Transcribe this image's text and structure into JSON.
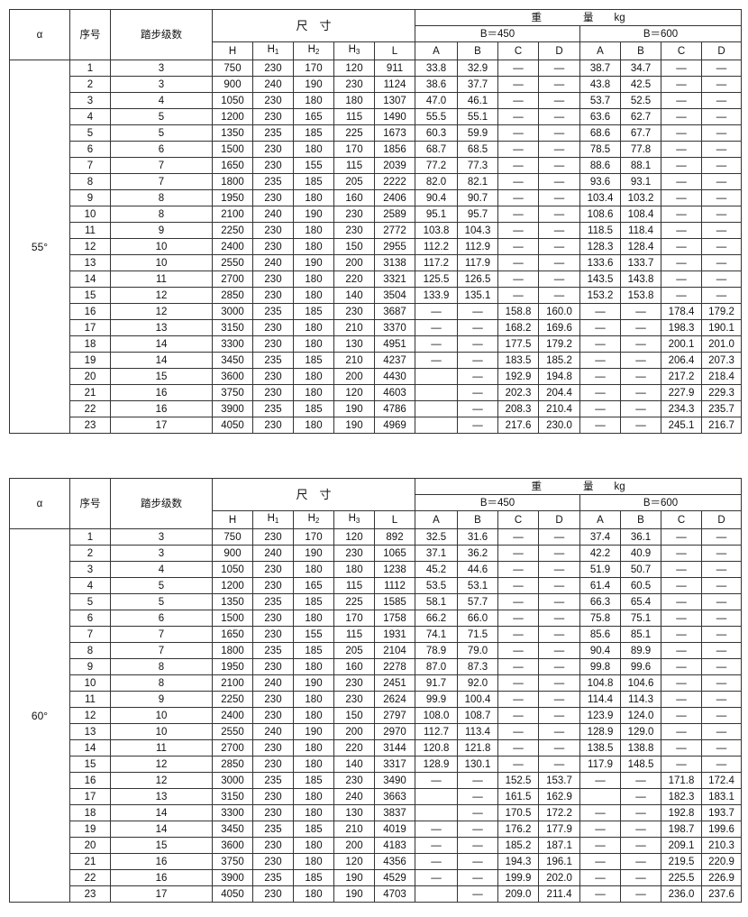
{
  "header": {
    "alpha": "α",
    "no": "序号",
    "steps": "踏步级数",
    "dimensions": "尺　寸",
    "weight": "重　　　　量　　kg",
    "b450": "B＝450",
    "b600": "B＝600",
    "dim_cols": [
      "H",
      "H1",
      "H2",
      "H3",
      "L"
    ],
    "weight_cols": [
      "A",
      "B",
      "C",
      "D",
      "A",
      "B",
      "C",
      "D"
    ]
  },
  "tables": [
    {
      "alpha": "55°",
      "rows": [
        [
          "1",
          "3",
          "750",
          "230",
          "170",
          "120",
          "911",
          "33.8",
          "32.9",
          "—",
          "—",
          "38.7",
          "34.7",
          "—",
          "—"
        ],
        [
          "2",
          "3",
          "900",
          "240",
          "190",
          "230",
          "1124",
          "38.6",
          "37.7",
          "—",
          "—",
          "43.8",
          "42.5",
          "—",
          "—"
        ],
        [
          "3",
          "4",
          "1050",
          "230",
          "180",
          "180",
          "1307",
          "47.0",
          "46.1",
          "—",
          "—",
          "53.7",
          "52.5",
          "—",
          "—"
        ],
        [
          "4",
          "5",
          "1200",
          "230",
          "165",
          "115",
          "1490",
          "55.5",
          "55.1",
          "—",
          "—",
          "63.6",
          "62.7",
          "—",
          "—"
        ],
        [
          "5",
          "5",
          "1350",
          "235",
          "185",
          "225",
          "1673",
          "60.3",
          "59.9",
          "—",
          "—",
          "68.6",
          "67.7",
          "—",
          "—"
        ],
        [
          "6",
          "6",
          "1500",
          "230",
          "180",
          "170",
          "1856",
          "68.7",
          "68.5",
          "—",
          "—",
          "78.5",
          "77.8",
          "—",
          "—"
        ],
        [
          "7",
          "7",
          "1650",
          "230",
          "155",
          "115",
          "2039",
          "77.2",
          "77.3",
          "—",
          "—",
          "88.6",
          "88.1",
          "—",
          "—"
        ],
        [
          "8",
          "7",
          "1800",
          "235",
          "185",
          "205",
          "2222",
          "82.0",
          "82.1",
          "—",
          "—",
          "93.6",
          "93.1",
          "—",
          "—"
        ],
        [
          "9",
          "8",
          "1950",
          "230",
          "180",
          "160",
          "2406",
          "90.4",
          "90.7",
          "—",
          "—",
          "103.4",
          "103.2",
          "—",
          "—"
        ],
        [
          "10",
          "8",
          "2100",
          "240",
          "190",
          "230",
          "2589",
          "95.1",
          "95.7",
          "—",
          "—",
          "108.6",
          "108.4",
          "—",
          "—"
        ],
        [
          "11",
          "9",
          "2250",
          "230",
          "180",
          "230",
          "2772",
          "103.8",
          "104.3",
          "—",
          "—",
          "118.5",
          "118.4",
          "—",
          "—"
        ],
        [
          "12",
          "10",
          "2400",
          "230",
          "180",
          "150",
          "2955",
          "112.2",
          "112.9",
          "—",
          "—",
          "128.3",
          "128.4",
          "—",
          "—"
        ],
        [
          "13",
          "10",
          "2550",
          "240",
          "190",
          "200",
          "3138",
          "117.2",
          "117.9",
          "—",
          "—",
          "133.6",
          "133.7",
          "—",
          "—"
        ],
        [
          "14",
          "11",
          "2700",
          "230",
          "180",
          "220",
          "3321",
          "125.5",
          "126.5",
          "—",
          "—",
          "143.5",
          "143.8",
          "—",
          "—"
        ],
        [
          "15",
          "12",
          "2850",
          "230",
          "180",
          "140",
          "3504",
          "133.9",
          "135.1",
          "—",
          "—",
          "153.2",
          "153.8",
          "—",
          "—"
        ],
        [
          "16",
          "12",
          "3000",
          "235",
          "185",
          "230",
          "3687",
          "—",
          "—",
          "158.8",
          "160.0",
          "—",
          "—",
          "178.4",
          "179.2"
        ],
        [
          "17",
          "13",
          "3150",
          "230",
          "180",
          "210",
          "3370",
          "—",
          "—",
          "168.2",
          "169.6",
          "—",
          "—",
          "198.3",
          "190.1"
        ],
        [
          "18",
          "14",
          "3300",
          "230",
          "180",
          "130",
          "4951",
          "—",
          "—",
          "177.5",
          "179.2",
          "—",
          "—",
          "200.1",
          "201.0"
        ],
        [
          "19",
          "14",
          "3450",
          "235",
          "185",
          "210",
          "4237",
          "—",
          "—",
          "183.5",
          "185.2",
          "—",
          "—",
          "206.4",
          "207.3"
        ],
        [
          "20",
          "15",
          "3600",
          "230",
          "180",
          "200",
          "4430",
          "",
          "—",
          "192.9",
          "194.8",
          "—",
          "—",
          "217.2",
          "218.4"
        ],
        [
          "21",
          "16",
          "3750",
          "230",
          "180",
          "120",
          "4603",
          "",
          "—",
          "202.3",
          "204.4",
          "—",
          "—",
          "227.9",
          "229.3"
        ],
        [
          "22",
          "16",
          "3900",
          "235",
          "185",
          "190",
          "4786",
          "",
          "—",
          "208.3",
          "210.4",
          "—",
          "—",
          "234.3",
          "235.7"
        ],
        [
          "23",
          "17",
          "4050",
          "230",
          "180",
          "190",
          "4969",
          "",
          "—",
          "217.6",
          "230.0",
          "—",
          "—",
          "245.1",
          "216.7"
        ]
      ]
    },
    {
      "alpha": "60°",
      "rows": [
        [
          "1",
          "3",
          "750",
          "230",
          "170",
          "120",
          "892",
          "32.5",
          "31.6",
          "—",
          "—",
          "37.4",
          "36.1",
          "—",
          "—"
        ],
        [
          "2",
          "3",
          "900",
          "240",
          "190",
          "230",
          "1065",
          "37.1",
          "36.2",
          "—",
          "—",
          "42.2",
          "40.9",
          "—",
          "—"
        ],
        [
          "3",
          "4",
          "1050",
          "230",
          "180",
          "180",
          "1238",
          "45.2",
          "44.6",
          "—",
          "—",
          "51.9",
          "50.7",
          "—",
          "—"
        ],
        [
          "4",
          "5",
          "1200",
          "230",
          "165",
          "115",
          "1112",
          "53.5",
          "53.1",
          "—",
          "—",
          "61.4",
          "60.5",
          "—",
          "—"
        ],
        [
          "5",
          "5",
          "1350",
          "235",
          "185",
          "225",
          "1585",
          "58.1",
          "57.7",
          "—",
          "—",
          "66.3",
          "65.4",
          "—",
          "—"
        ],
        [
          "6",
          "6",
          "1500",
          "230",
          "180",
          "170",
          "1758",
          "66.2",
          "66.0",
          "—",
          "—",
          "75.8",
          "75.1",
          "—",
          "—"
        ],
        [
          "7",
          "7",
          "1650",
          "230",
          "155",
          "115",
          "1931",
          "74.1",
          "71.5",
          "—",
          "—",
          "85.6",
          "85.1",
          "—",
          "—"
        ],
        [
          "8",
          "7",
          "1800",
          "235",
          "185",
          "205",
          "2104",
          "78.9",
          "79.0",
          "—",
          "—",
          "90.4",
          "89.9",
          "—",
          "—"
        ],
        [
          "9",
          "8",
          "1950",
          "230",
          "180",
          "160",
          "2278",
          "87.0",
          "87.3",
          "—",
          "—",
          "99.8",
          "99.6",
          "—",
          "—"
        ],
        [
          "10",
          "8",
          "2100",
          "240",
          "190",
          "230",
          "2451",
          "91.7",
          "92.0",
          "—",
          "—",
          "104.8",
          "104.6",
          "—",
          "—"
        ],
        [
          "11",
          "9",
          "2250",
          "230",
          "180",
          "230",
          "2624",
          "99.9",
          "100.4",
          "—",
          "—",
          "114.4",
          "114.3",
          "—",
          "—"
        ],
        [
          "12",
          "10",
          "2400",
          "230",
          "180",
          "150",
          "2797",
          "108.0",
          "108.7",
          "—",
          "—",
          "123.9",
          "124.0",
          "—",
          "—"
        ],
        [
          "13",
          "10",
          "2550",
          "240",
          "190",
          "200",
          "2970",
          "112.7",
          "113.4",
          "—",
          "—",
          "128.9",
          "129.0",
          "—",
          "—"
        ],
        [
          "14",
          "11",
          "2700",
          "230",
          "180",
          "220",
          "3144",
          "120.8",
          "121.8",
          "—",
          "—",
          "138.5",
          "138.8",
          "—",
          "—"
        ],
        [
          "15",
          "12",
          "2850",
          "230",
          "180",
          "140",
          "3317",
          "128.9",
          "130.1",
          "—",
          "—",
          "117.9",
          "148.5",
          "—",
          "—"
        ],
        [
          "16",
          "12",
          "3000",
          "235",
          "185",
          "230",
          "3490",
          "—",
          "—",
          "152.5",
          "153.7",
          "—",
          "—",
          "171.8",
          "172.4"
        ],
        [
          "17",
          "13",
          "3150",
          "230",
          "180",
          "240",
          "3663",
          "",
          "—",
          "161.5",
          "162.9",
          "",
          "—",
          "182.3",
          "183.1"
        ],
        [
          "18",
          "14",
          "3300",
          "230",
          "180",
          "130",
          "3837",
          "",
          "—",
          "170.5",
          "172.2",
          "—",
          "—",
          "192.8",
          "193.7"
        ],
        [
          "19",
          "14",
          "3450",
          "235",
          "185",
          "210",
          "4019",
          "—",
          "—",
          "176.2",
          "177.9",
          "—",
          "—",
          "198.7",
          "199.6"
        ],
        [
          "20",
          "15",
          "3600",
          "230",
          "180",
          "200",
          "4183",
          "—",
          "—",
          "185.2",
          "187.1",
          "—",
          "—",
          "209.1",
          "210.3"
        ],
        [
          "21",
          "16",
          "3750",
          "230",
          "180",
          "120",
          "4356",
          "—",
          "—",
          "194.3",
          "196.1",
          "—",
          "—",
          "219.5",
          "220.9"
        ],
        [
          "22",
          "16",
          "3900",
          "235",
          "185",
          "190",
          "4529",
          "—",
          "—",
          "199.9",
          "202.0",
          "—",
          "—",
          "225.5",
          "226.9"
        ],
        [
          "23",
          "17",
          "4050",
          "230",
          "180",
          "190",
          "4703",
          "",
          "—",
          "209.0",
          "211.4",
          "—",
          "—",
          "236.0",
          "237.6"
        ]
      ]
    }
  ]
}
